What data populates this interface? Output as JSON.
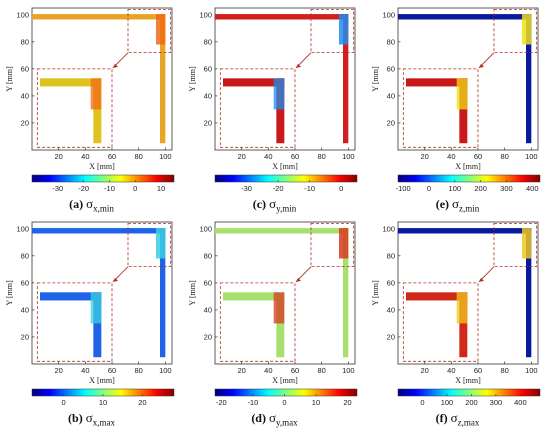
{
  "panels": [
    {
      "letter": "(a)",
      "sigma": "σ",
      "sub": "x,min",
      "x_axis_label": "X [mm]",
      "y_axis_label": "Y [mm]",
      "x_ticks": [
        20,
        40,
        60,
        80,
        100
      ],
      "y_ticks": [
        20,
        40,
        60,
        80,
        100
      ],
      "colorbar": {
        "min": -40,
        "max": 15,
        "ticks": [
          -30,
          -20,
          -10,
          0,
          10
        ],
        "ticklabels": [
          "-30",
          "-20",
          "-10",
          "0",
          "10"
        ]
      },
      "fill_main": "#e8a424",
      "fill_inset": "#e0c21c",
      "hotspot": "#f26b16"
    },
    {
      "letter": "(c)",
      "sigma": "σ",
      "sub": "y,min",
      "x_axis_label": "X [mm]",
      "y_axis_label": "Y [mm]",
      "x_ticks": [
        20,
        40,
        60,
        80,
        100
      ],
      "y_ticks": [
        20,
        40,
        60,
        80,
        100
      ],
      "colorbar": {
        "min": -40,
        "max": 5,
        "ticks": [
          -30,
          -20,
          -10,
          0
        ],
        "ticklabels": [
          "-30",
          "-20",
          "-10",
          "0"
        ]
      },
      "fill_main": "#d21e1e",
      "fill_inset": "#c81a1a",
      "hotspot": "#1e8cf0"
    },
    {
      "letter": "(e)",
      "sigma": "σ",
      "sub": "z,min",
      "x_axis_label": "X [mm]",
      "y_axis_label": "Y [mm]",
      "x_ticks": [
        20,
        40,
        60,
        80,
        100
      ],
      "y_ticks": [
        20,
        40,
        60,
        80,
        100
      ],
      "colorbar": {
        "min": -120,
        "max": 430,
        "ticks": [
          -100,
          0,
          100,
          200,
          300,
          400
        ],
        "ticklabels": [
          "-100",
          "0",
          "100",
          "200",
          "300",
          "400"
        ]
      },
      "fill_main": "#0a1a9c",
      "fill_inset": "#c81a1a",
      "hotspot": "#f0e014"
    },
    {
      "letter": "(b)",
      "sigma": "σ",
      "sub": "x,max",
      "x_axis_label": "X [mm]",
      "y_axis_label": "Y [mm]",
      "x_ticks": [
        20,
        40,
        60,
        80,
        100
      ],
      "y_ticks": [
        20,
        40,
        60,
        80,
        100
      ],
      "colorbar": {
        "min": -8,
        "max": 28,
        "ticks": [
          0,
          10,
          20
        ],
        "ticklabels": [
          "0",
          "10",
          "20"
        ]
      },
      "fill_main": "#1e64e6",
      "fill_inset": "#1e64e6",
      "hotspot": "#38d0e0"
    },
    {
      "letter": "(d)",
      "sigma": "σ",
      "sub": "y,max",
      "x_axis_label": "X [mm]",
      "y_axis_label": "Y [mm]",
      "x_ticks": [
        20,
        40,
        60,
        80,
        100
      ],
      "y_ticks": [
        20,
        40,
        60,
        80,
        100
      ],
      "colorbar": {
        "min": -22,
        "max": 23,
        "ticks": [
          -20,
          -10,
          0,
          10,
          20
        ],
        "ticklabels": [
          "-20",
          "-10",
          "0",
          "10",
          "20"
        ]
      },
      "fill_main": "#a8e070",
      "fill_inset": "#a8e070",
      "hotspot": "#d83a1e"
    },
    {
      "letter": "(f)",
      "sigma": "σ",
      "sub": "z,max",
      "x_axis_label": "X [mm]",
      "y_axis_label": "Y [mm]",
      "x_ticks": [
        20,
        40,
        60,
        80,
        100
      ],
      "y_ticks": [
        20,
        40,
        60,
        80,
        100
      ],
      "colorbar": {
        "min": -100,
        "max": 480,
        "ticks": [
          0,
          100,
          200,
          300,
          400
        ],
        "ticklabels": [
          "0",
          "100",
          "200",
          "300",
          "400"
        ]
      },
      "fill_main": "#0a1a9c",
      "fill_inset": "#d2281a",
      "hotspot": "#f0c81c"
    }
  ],
  "chart_data": [
    {
      "type": "heatmap",
      "title": "σx,min",
      "xlabel": "X [mm]",
      "ylabel": "Y [mm]",
      "xlim": [
        0,
        105
      ],
      "ylim": [
        0,
        105
      ],
      "colorbar_range": [
        -40,
        15
      ]
    },
    {
      "type": "heatmap",
      "title": "σy,min",
      "xlabel": "X [mm]",
      "ylabel": "Y [mm]",
      "xlim": [
        0,
        105
      ],
      "ylim": [
        0,
        105
      ],
      "colorbar_range": [
        -40,
        5
      ]
    },
    {
      "type": "heatmap",
      "title": "σz,min",
      "xlabel": "X [mm]",
      "ylabel": "Y [mm]",
      "xlim": [
        0,
        105
      ],
      "ylim": [
        0,
        105
      ],
      "colorbar_range": [
        -120,
        430
      ]
    },
    {
      "type": "heatmap",
      "title": "σx,max",
      "xlabel": "X [mm]",
      "ylabel": "Y [mm]",
      "xlim": [
        0,
        105
      ],
      "ylim": [
        0,
        105
      ],
      "colorbar_range": [
        -8,
        28
      ]
    },
    {
      "type": "heatmap",
      "title": "σy,max",
      "xlabel": "X [mm]",
      "ylabel": "Y [mm]",
      "xlim": [
        0,
        105
      ],
      "ylim": [
        0,
        105
      ],
      "colorbar_range": [
        -22,
        23
      ]
    },
    {
      "type": "heatmap",
      "title": "σz,max",
      "xlabel": "X [mm]",
      "ylabel": "Y [mm]",
      "xlim": [
        0,
        105
      ],
      "ylim": [
        0,
        105
      ],
      "colorbar_range": [
        -100,
        480
      ]
    }
  ]
}
